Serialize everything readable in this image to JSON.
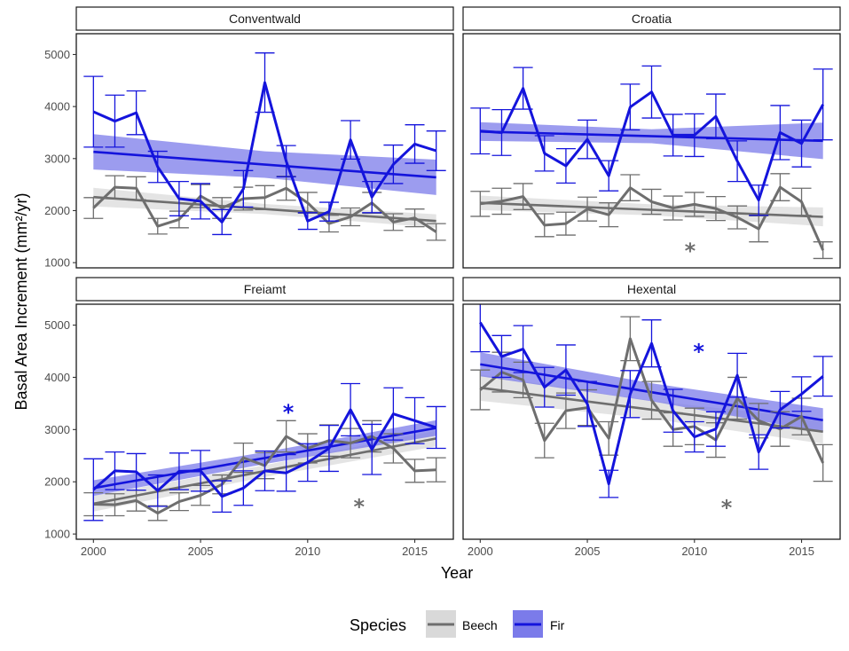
{
  "chart_data": {
    "type": "line",
    "ylabel": "Basal Area Increment (mm²/yr)",
    "xlabel": "Year",
    "xlim": [
      1999.2,
      2016.8
    ],
    "ylim": [
      900,
      5400
    ],
    "x_ticks": [
      2000,
      2005,
      2010,
      2015
    ],
    "y_ticks": [
      1000,
      2000,
      3000,
      4000,
      5000
    ],
    "x_tick_labels": [
      "2000",
      "2005",
      "2010",
      "2015"
    ],
    "y_tick_labels": [
      "1000",
      "2000",
      "3000",
      "4000",
      "5000"
    ],
    "years": [
      2000,
      2001,
      2002,
      2003,
      2004,
      2005,
      2006,
      2007,
      2008,
      2009,
      2010,
      2011,
      2012,
      2013,
      2014,
      2015,
      2016
    ],
    "legend": {
      "title": "Species",
      "entries": [
        {
          "name": "Beech",
          "color": "#6e6e6e",
          "ribbon": "#d9d9d9"
        },
        {
          "name": "Fir",
          "color": "#1414dc",
          "ribbon": "#7b7bea"
        }
      ]
    },
    "panels": [
      {
        "name": "Conventwald",
        "series": [
          {
            "name": "Beech",
            "values": [
              2050,
              2450,
              2430,
              1700,
              1830,
              2280,
              2050,
              2230,
              2250,
              2430,
              2150,
              1750,
              1880,
              2150,
              1780,
              1860,
              1590
            ],
            "errors": [
              200,
              220,
              220,
              150,
              160,
              220,
              200,
              220,
              230,
              230,
              200,
              160,
              170,
              200,
              160,
              170,
              160
            ],
            "trend": [
              2260,
              1800
            ],
            "trend_se": [
              180,
              130
            ]
          },
          {
            "name": "Fir",
            "values": [
              3900,
              3720,
              3880,
              2840,
              2230,
              2180,
              1780,
              2420,
              4460,
              2950,
              1800,
              1980,
              3360,
              2260,
              2890,
              3280,
              3150
            ],
            "errors": [
              680,
              500,
              420,
              300,
              330,
              340,
              240,
              350,
              570,
              300,
              160,
              180,
              370,
              300,
              370,
              370,
              380
            ],
            "trend": [
              3130,
              2640
            ],
            "trend_se": [
              340,
              340
            ]
          }
        ],
        "annotations": []
      },
      {
        "name": "Croatia",
        "series": [
          {
            "name": "Beech",
            "values": [
              2130,
              2180,
              2270,
              1720,
              1750,
              2030,
              1920,
              2440,
              2170,
              2050,
              2120,
              2040,
              1870,
              1650,
              2450,
              2170,
              1240
            ],
            "errors": [
              240,
              250,
              250,
              220,
              220,
              230,
              230,
              250,
              240,
              230,
              230,
              230,
              220,
              250,
              260,
              260,
              160
            ],
            "trend": [
              2150,
              1880
            ],
            "trend_se": [
              140,
              180
            ]
          },
          {
            "name": "Fir",
            "values": [
              3530,
              3500,
              4350,
              3100,
              2860,
              3370,
              2670,
              3990,
              4280,
              3450,
              3450,
              3810,
              2950,
              2200,
              3500,
              3290,
              4040
            ],
            "errors": [
              440,
              440,
              400,
              340,
              330,
              370,
              290,
              440,
              500,
              400,
              410,
              430,
              390,
              290,
              520,
              450,
              680
            ],
            "trend": [
              3520,
              3340
            ],
            "trend_se": [
              180,
              350
            ]
          }
        ],
        "annotations": [
          {
            "text": "*",
            "species": "Beech",
            "x": 2009.8,
            "y": 1290
          }
        ]
      },
      {
        "name": "Freiamt",
        "series": [
          {
            "name": "Beech",
            "values": [
              1570,
              1560,
              1640,
              1400,
              1620,
              1740,
              1950,
              2460,
              2310,
              2870,
              2640,
              2790,
              2740,
              2870,
              2640,
              2210,
              2230
            ],
            "errors": [
              220,
              210,
              200,
              140,
              170,
              190,
              180,
              280,
              250,
              300,
              280,
              300,
              280,
              300,
              280,
              220,
              230
            ],
            "trend": [
              1580,
              2830
            ],
            "trend_se": [
              150,
              150
            ]
          },
          {
            "name": "Fir",
            "values": [
              1850,
              2210,
              2190,
              1830,
              2200,
              2210,
              1720,
              1880,
              2210,
              2170,
              2370,
              2640,
              3380,
              2620,
              3300,
              3170,
              3040
            ],
            "errors": [
              590,
              360,
              350,
              300,
              350,
              390,
              300,
              330,
              380,
              350,
              360,
              440,
              500,
              480,
              500,
              440,
              400
            ],
            "trend": [
              1880,
              3030
            ],
            "trend_se": [
              150,
              150
            ]
          }
        ],
        "annotations": [
          {
            "text": "*",
            "species": "Fir",
            "x": 2009.1,
            "y": 3400
          },
          {
            "text": "*",
            "species": "Beech",
            "x": 2012.4,
            "y": 1590
          }
        ]
      },
      {
        "name": "Hexental",
        "series": [
          {
            "name": "Beech",
            "values": [
              3760,
              4100,
              3950,
              2790,
              3360,
              3420,
              2830,
              4740,
              3560,
              3000,
              3060,
              2800,
              3600,
              3170,
              3010,
              3250,
              2360
            ],
            "errors": [
              380,
              380,
              340,
              330,
              340,
              340,
              320,
              420,
              360,
              320,
              350,
              330,
              400,
              330,
              330,
              350,
              350
            ],
            "trend": [
              3800,
              2960
            ],
            "trend_se": [
              250,
              230
            ]
          },
          {
            "name": "Fir",
            "values": [
              5050,
              4400,
              4540,
              3810,
              4140,
              3490,
              1960,
              3680,
              4650,
              3360,
              2860,
              3010,
              4040,
              2570,
              3380,
              3680,
              4020
            ],
            "errors": [
              560,
              400,
              450,
              380,
              480,
              430,
              260,
              450,
              450,
              410,
              290,
              330,
              420,
              330,
              350,
              330,
              380
            ],
            "trend": [
              4250,
              3180
            ],
            "trend_se": [
              230,
              230
            ]
          }
        ],
        "annotations": [
          {
            "text": "*",
            "species": "Fir",
            "x": 2010.2,
            "y": 4560
          },
          {
            "text": "*",
            "species": "Beech",
            "x": 2011.5,
            "y": 1570
          }
        ]
      }
    ]
  }
}
